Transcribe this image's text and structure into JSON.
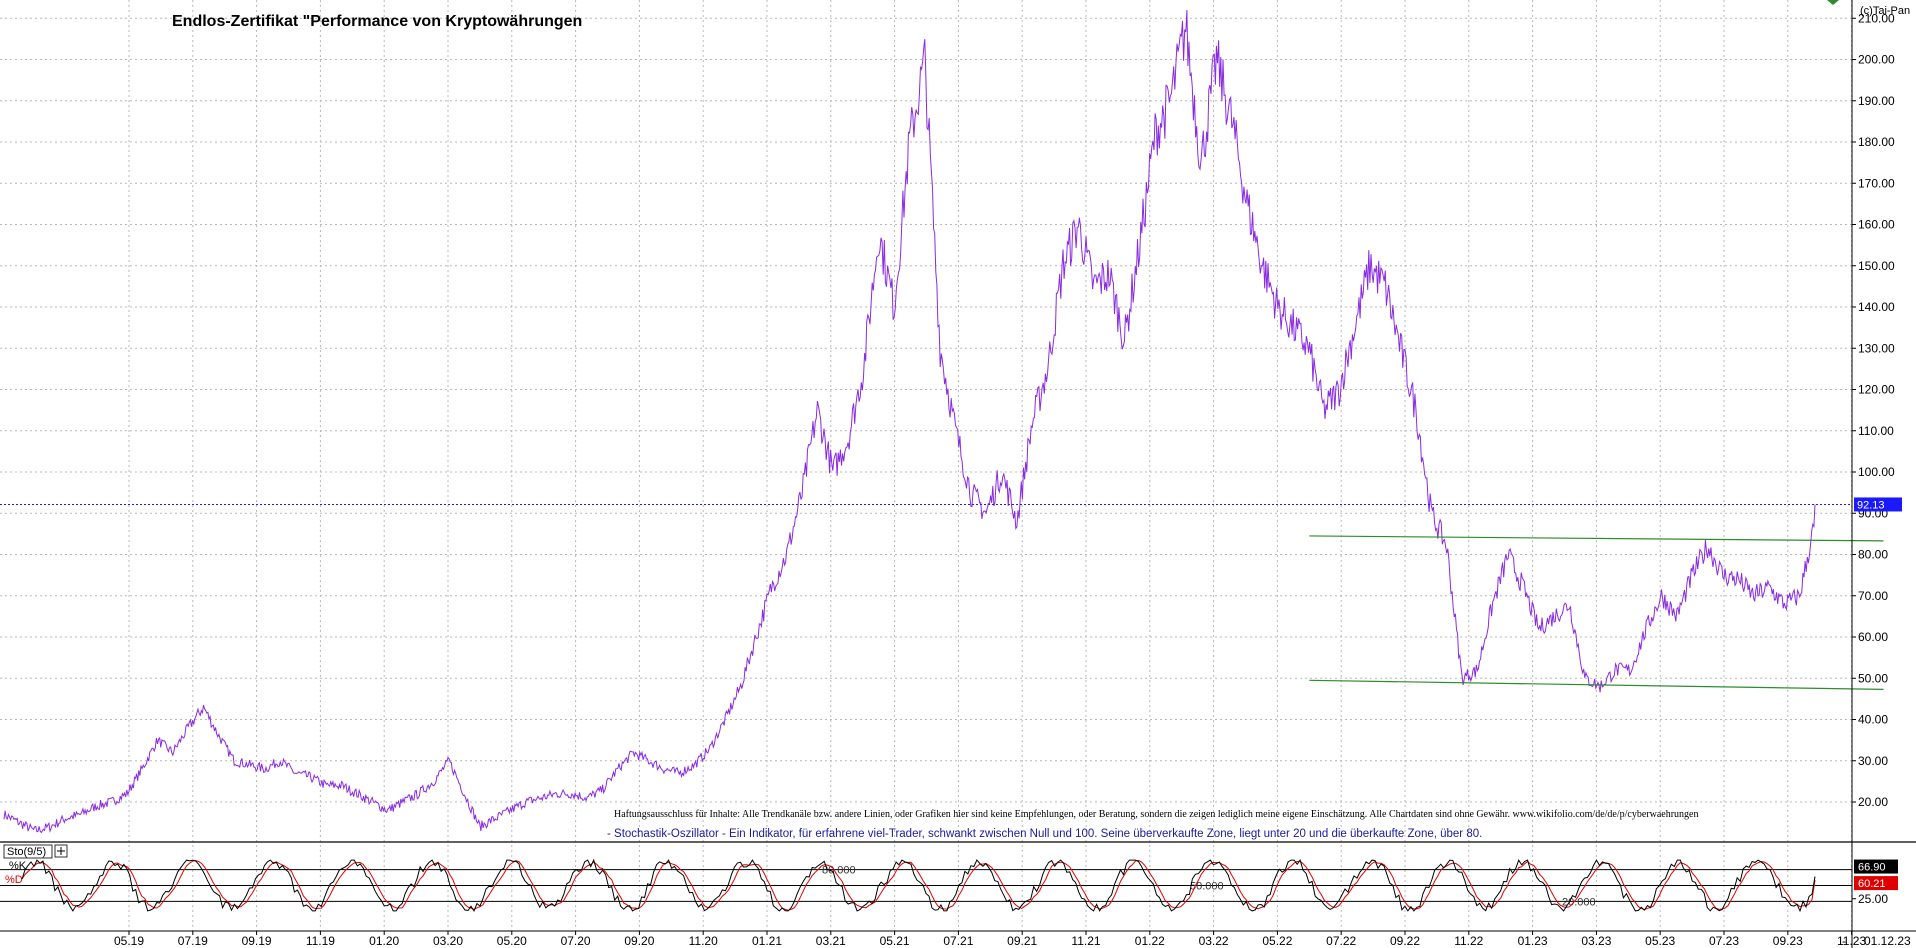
{
  "chart": {
    "title": "Endlos-Zertifikat \"Performance von Kryptowährungen",
    "credit": "(c)Tai-Pan",
    "disclaimer": "Haftungsausschluss für Inhalte: Alle Trendkanäle bzw. andere Linien, oder Grafiken hier sind keine Empfehlungen, oder Beratung, sondern die zeigen lediglich meine eigene Einschätzung. Alle Chartdaten sind ohne Gewähr.  www.wikifolio.com/de/de/p/cyberwaehrungen",
    "indicator_description": "- Stochastik-Oszillator - Ein Indikator, für erfahrene viel-Trader, schwankt zwischen Null und 100. Seine überverkaufte Zone, liegt unter 20 und die überkaufte Zone, über 80.",
    "indicator_name": "Sto(9/5)",
    "indicator_k_label": "%K",
    "indicator_d_label": "%D",
    "last_date_label": "01.12.23",
    "colors": {
      "price": "#8a2be2",
      "trend": "#2e8b2e",
      "current_line": "#1a1aff",
      "k": "#000000",
      "d": "#e00000",
      "current_badge": "#1a1aff",
      "k_badge": "#000000",
      "d_badge": "#e00000"
    }
  },
  "chart_data": [
    {
      "type": "line",
      "title": "Endlos-Zertifikat \"Performance von Kryptowährungen",
      "ylim": [
        0,
        210
      ],
      "y_ticks": [
        20,
        30,
        40,
        50,
        60,
        70,
        80,
        90,
        100,
        110,
        120,
        130,
        140,
        150,
        160,
        170,
        180,
        190,
        200,
        210
      ],
      "y_tick_labels": [
        "20.00",
        "30.00",
        "40.00",
        "50.00",
        "60.00",
        "70.00",
        "80.00",
        "90.00",
        "100.00",
        "110.00",
        "120.00",
        "130.00",
        "140.00",
        "150.00",
        "160.00",
        "170.00",
        "180.00",
        "190.00",
        "200.00",
        "210.00"
      ],
      "x_tick_labels": [
        "05.19",
        "07.19",
        "09.19",
        "11.19",
        "01.20",
        "03.20",
        "05.20",
        "07.20",
        "09.20",
        "11.20",
        "01.21",
        "03.21",
        "05.21",
        "07.21",
        "09.21",
        "11.21",
        "01.22",
        "03.22",
        "05.22",
        "07.22",
        "09.22",
        "11.22",
        "01.23",
        "03.23",
        "05.23",
        "07.23",
        "09.23",
        "11.23"
      ],
      "grid": true,
      "current_value": 92.13,
      "current_value_label": "92.13",
      "series": [
        {
          "x": [
            0,
            1,
            2,
            3,
            4,
            5,
            6,
            7,
            8,
            9,
            10,
            11,
            12,
            13,
            14,
            15,
            16,
            17,
            18,
            19,
            20,
            21,
            22,
            23,
            24,
            25,
            26,
            27,
            28,
            29,
            30,
            31,
            32,
            33,
            34,
            35,
            36,
            37,
            38,
            39,
            40,
            41,
            42,
            43,
            44,
            45,
            46,
            47,
            48,
            49,
            50,
            51,
            52,
            53,
            54,
            55,
            56,
            57,
            58,
            59,
            60,
            61,
            62,
            63,
            64,
            65,
            66,
            67,
            68,
            69,
            70,
            71,
            72,
            73,
            74,
            75,
            76,
            77,
            78,
            79,
            80,
            81,
            82,
            83,
            84,
            85,
            86,
            87,
            88,
            89,
            90,
            91,
            92,
            93,
            94,
            95,
            96,
            97,
            98,
            99,
            100,
            101,
            102,
            103,
            104,
            105,
            106,
            107,
            108,
            109,
            110,
            111,
            112,
            113,
            114,
            115,
            116,
            117,
            118
          ],
          "values": [
            17,
            15,
            13,
            14,
            16,
            17,
            19,
            20,
            22,
            28,
            35,
            32,
            38,
            43,
            36,
            30,
            29,
            28,
            30,
            27,
            26,
            24,
            24,
            22,
            20,
            18,
            20,
            22,
            25,
            30,
            22,
            14,
            16,
            18,
            20,
            21,
            22,
            22,
            21,
            23,
            28,
            32,
            30,
            28,
            27,
            29,
            33,
            40,
            48,
            60,
            72,
            80,
            95,
            115,
            100,
            108,
            125,
            158,
            140,
            180,
            200,
            130,
            110,
            95,
            90,
            100,
            88,
            112,
            125,
            150,
            160,
            145,
            148,
            132,
            155,
            182,
            190,
            208,
            175,
            200,
            185,
            165,
            150,
            140,
            135,
            130,
            115,
            120,
            135,
            150,
            145,
            130,
            115,
            90,
            82,
            50,
            52,
            68,
            80,
            72,
            62,
            65,
            68,
            50,
            48,
            52,
            52,
            62,
            70,
            65,
            75,
            82,
            75,
            74,
            70,
            72,
            68,
            70,
            88
          ]
        }
      ],
      "trend_lines": [
        {
          "from": {
            "x": "06.22",
            "y": 84.5
          },
          "to": {
            "x": "12.23",
            "y": 83.3
          }
        },
        {
          "from": {
            "x": "06.22",
            "y": 49.5
          },
          "to": {
            "x": "12.23",
            "y": 47.3
          }
        }
      ]
    },
    {
      "type": "line",
      "title": "Sto(9/5)",
      "ylim": [
        0,
        100
      ],
      "levels": [
        20,
        50,
        80
      ],
      "level_labels": [
        "20.000",
        "50.000",
        "80.000"
      ],
      "y_tick_labels": [
        "25.00"
      ],
      "series": [
        {
          "name": "%K",
          "current": 66.9,
          "current_label": "66.90"
        },
        {
          "name": "%D",
          "current": 60.21,
          "current_label": "60.21"
        }
      ]
    }
  ]
}
